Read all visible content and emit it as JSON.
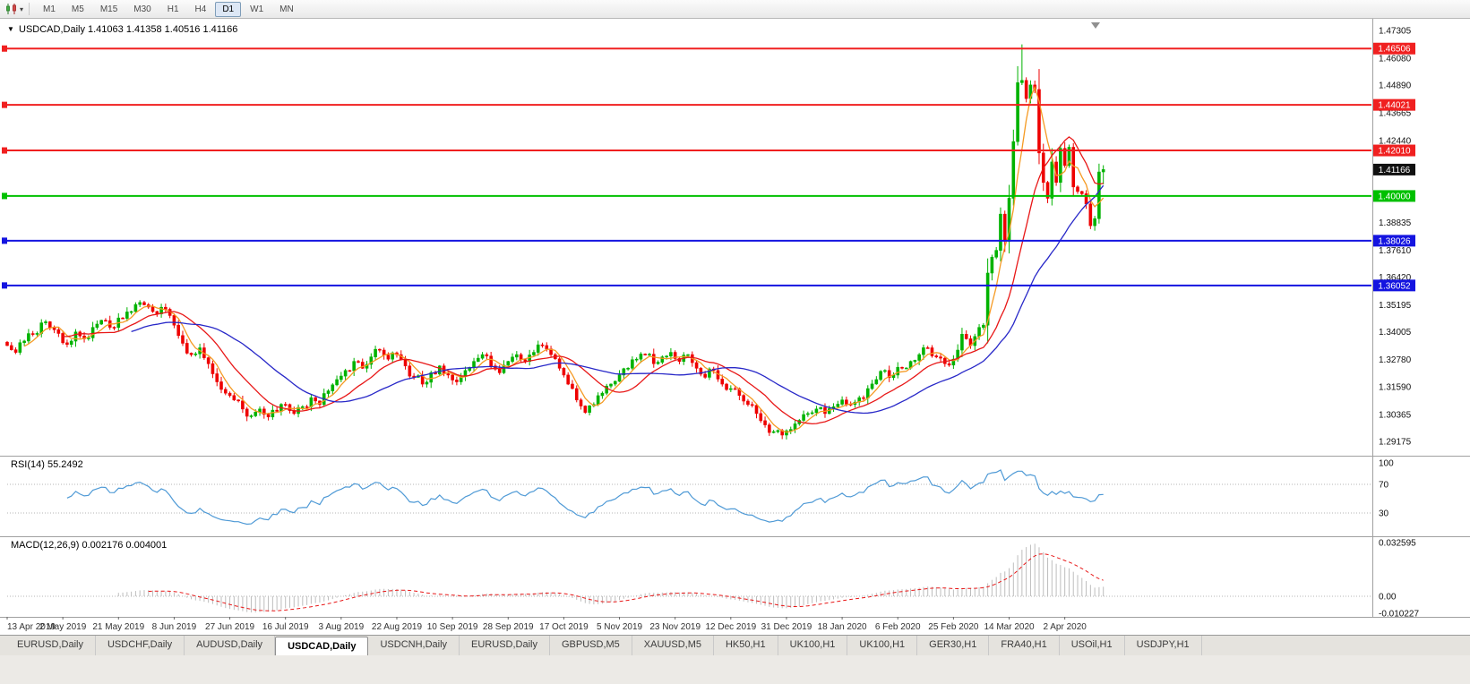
{
  "toolbar": {
    "dropdown_glyph": "▾",
    "timeframes": [
      {
        "label": "M1",
        "active": false
      },
      {
        "label": "M5",
        "active": false
      },
      {
        "label": "M15",
        "active": false
      },
      {
        "label": "M30",
        "active": false
      },
      {
        "label": "H1",
        "active": false
      },
      {
        "label": "H4",
        "active": false
      },
      {
        "label": "D1",
        "active": true
      },
      {
        "label": "W1",
        "active": false
      },
      {
        "label": "MN",
        "active": false
      }
    ]
  },
  "chart": {
    "collapse_icon": "▼",
    "symbol": "USDCAD",
    "period": "Daily",
    "title_line": "USDCAD,Daily  1.41063 1.41358 1.40516 1.41166",
    "ohlc": {
      "open": "1.41063",
      "high": "1.41358",
      "low": "1.40516",
      "close": "1.41166"
    }
  },
  "price_axis": {
    "ticks": [
      "1.47305",
      "1.46080",
      "1.44890",
      "1.43665",
      "1.42440",
      "1.38835",
      "1.37610",
      "1.36420",
      "1.35195",
      "1.34005",
      "1.32780",
      "1.31590",
      "1.30365",
      "1.29175"
    ],
    "tags": [
      {
        "label": "1.46506",
        "price": 1.46506,
        "color": "#f02020",
        "text_color": "#ffffff"
      },
      {
        "label": "1.44021",
        "price": 1.44021,
        "color": "#f02020",
        "text_color": "#ffffff"
      },
      {
        "label": "1.42010",
        "price": 1.4201,
        "color": "#f02020",
        "text_color": "#ffffff"
      },
      {
        "label": "1.41166",
        "price": 1.41166,
        "color": "#111111",
        "text_color": "#ffffff"
      },
      {
        "label": "1.40000",
        "price": 1.4,
        "color": "#00c000",
        "text_color": "#ffffff"
      },
      {
        "label": "1.38026",
        "price": 1.38026,
        "color": "#1414e0",
        "text_color": "#ffffff"
      },
      {
        "label": "1.36052",
        "price": 1.36052,
        "color": "#1414e0",
        "text_color": "#ffffff"
      }
    ]
  },
  "rsi": {
    "label_line": "RSI(14) 55.2492",
    "current": 55.2492,
    "period": 14,
    "color": "#4f9ad6",
    "axis": [
      {
        "label": "100",
        "value": 100
      },
      {
        "label": "70",
        "value": 70
      },
      {
        "label": "30",
        "value": 30
      }
    ],
    "dotted_levels": [
      70,
      30
    ]
  },
  "macd": {
    "label_line": "MACD(12,26,9) 0.002176 0.004001",
    "current_macd": 0.002176,
    "current_signal": 0.004001,
    "hist_color": "#bdbdbd",
    "signal_color": "#e81717",
    "axis": [
      {
        "label": "0.032595",
        "value": 0.032595
      },
      {
        "label": "0.00",
        "value": 0
      },
      {
        "label": "-0.010227",
        "value": -0.010227
      }
    ]
  },
  "tabs": [
    {
      "label": "EURUSD,Daily",
      "active": false
    },
    {
      "label": "USDCHF,Daily",
      "active": false
    },
    {
      "label": "AUDUSD,Daily",
      "active": false
    },
    {
      "label": "USDCAD,Daily",
      "active": true
    },
    {
      "label": "USDCNH,Daily",
      "active": false
    },
    {
      "label": "EURUSD,Daily",
      "active": false
    },
    {
      "label": "GBPUSD,M5",
      "active": false
    },
    {
      "label": "XAUUSD,M5",
      "active": false
    },
    {
      "label": "HK50,H1",
      "active": false
    },
    {
      "label": "UK100,H1",
      "active": false
    },
    {
      "label": "UK100,H1",
      "active": false
    },
    {
      "label": "GER30,H1",
      "active": false
    },
    {
      "label": "FRA40,H1",
      "active": false
    },
    {
      "label": "USOil,H1",
      "active": false
    },
    {
      "label": "USDJPY,H1",
      "active": false
    }
  ],
  "chart_data": {
    "type": "candlestick",
    "symbol": "USDCAD",
    "timeframe": "Daily",
    "title": "USDCAD,Daily",
    "visible_price_range": [
      1.2854,
      1.4774
    ],
    "candle_count": 257,
    "noise_amp": 0.0022,
    "candle_up_color": "#00b200",
    "candle_down_color": "#ee0000",
    "x_labels": [
      "13 Apr 2019",
      "2 May 2019",
      "21 May 2019",
      "8 Jun 2019",
      "27 Jun 2019",
      "16 Jul 2019",
      "3 Aug 2019",
      "22 Aug 2019",
      "10 Sep 2019",
      "28 Sep 2019",
      "17 Oct 2019",
      "5 Nov 2019",
      "23 Nov 2019",
      "12 Dec 2019",
      "31 Dec 2019",
      "18 Jan 2020",
      "6 Feb 2020",
      "25 Feb 2020",
      "14 Mar 2020",
      "2 Apr 2020"
    ],
    "label_candle_step": 13,
    "close_waypoints": [
      [
        0,
        1.334
      ],
      [
        2,
        1.331
      ],
      [
        4,
        1.336
      ],
      [
        6,
        1.339
      ],
      [
        9,
        1.3445
      ],
      [
        11,
        1.341
      ],
      [
        14,
        1.3345
      ],
      [
        16,
        1.34
      ],
      [
        18,
        1.337
      ],
      [
        20,
        1.342
      ],
      [
        23,
        1.345
      ],
      [
        25,
        1.342
      ],
      [
        27,
        1.346
      ],
      [
        29,
        1.349
      ],
      [
        31,
        1.353
      ],
      [
        33,
        1.351
      ],
      [
        35,
        1.348
      ],
      [
        37,
        1.35
      ],
      [
        39,
        1.343
      ],
      [
        41,
        1.335
      ],
      [
        43,
        1.33
      ],
      [
        45,
        1.333
      ],
      [
        47,
        1.326
      ],
      [
        49,
        1.318
      ],
      [
        51,
        1.313
      ],
      [
        53,
        1.31
      ],
      [
        55,
        1.306
      ],
      [
        57,
        1.303
      ],
      [
        59,
        1.306
      ],
      [
        61,
        1.3025
      ],
      [
        63,
        1.305
      ],
      [
        65,
        1.308
      ],
      [
        67,
        1.304
      ],
      [
        69,
        1.307
      ],
      [
        71,
        1.311
      ],
      [
        73,
        1.308
      ],
      [
        75,
        1.314
      ],
      [
        77,
        1.319
      ],
      [
        79,
        1.323
      ],
      [
        81,
        1.327
      ],
      [
        83,
        1.324
      ],
      [
        85,
        1.329
      ],
      [
        87,
        1.332
      ],
      [
        89,
        1.328
      ],
      [
        91,
        1.33
      ],
      [
        93,
        1.325
      ],
      [
        95,
        1.32
      ],
      [
        97,
        1.317
      ],
      [
        99,
        1.322
      ],
      [
        101,
        1.325
      ],
      [
        103,
        1.321
      ],
      [
        105,
        1.318
      ],
      [
        107,
        1.323
      ],
      [
        109,
        1.327
      ],
      [
        111,
        1.33
      ],
      [
        113,
        1.325
      ],
      [
        115,
        1.322
      ],
      [
        117,
        1.327
      ],
      [
        119,
        1.33
      ],
      [
        121,
        1.327
      ],
      [
        123,
        1.331
      ],
      [
        125,
        1.334
      ],
      [
        127,
        1.33
      ],
      [
        129,
        1.324
      ],
      [
        131,
        1.317
      ],
      [
        133,
        1.31
      ],
      [
        135,
        1.3045
      ],
      [
        137,
        1.308
      ],
      [
        139,
        1.313
      ],
      [
        141,
        1.317
      ],
      [
        143,
        1.321
      ],
      [
        145,
        1.324
      ],
      [
        147,
        1.328
      ],
      [
        149,
        1.33
      ],
      [
        151,
        1.326
      ],
      [
        153,
        1.329
      ],
      [
        155,
        1.331
      ],
      [
        157,
        1.327
      ],
      [
        159,
        1.33
      ],
      [
        161,
        1.324
      ],
      [
        163,
        1.32
      ],
      [
        165,
        1.323
      ],
      [
        167,
        1.317
      ],
      [
        169,
        1.315
      ],
      [
        171,
        1.312
      ],
      [
        173,
        1.308
      ],
      [
        175,
        1.304
      ],
      [
        177,
        1.299
      ],
      [
        179,
        1.296
      ],
      [
        181,
        1.2945
      ],
      [
        183,
        1.297
      ],
      [
        185,
        1.301
      ],
      [
        187,
        1.304
      ],
      [
        189,
        1.306
      ],
      [
        191,
        1.304
      ],
      [
        193,
        1.307
      ],
      [
        195,
        1.31
      ],
      [
        197,
        1.308
      ],
      [
        199,
        1.311
      ],
      [
        201,
        1.315
      ],
      [
        203,
        1.319
      ],
      [
        205,
        1.323
      ],
      [
        207,
        1.321
      ],
      [
        209,
        1.324
      ],
      [
        211,
        1.327
      ],
      [
        213,
        1.33
      ],
      [
        215,
        1.333
      ],
      [
        217,
        1.329
      ],
      [
        219,
        1.326
      ],
      [
        221,
        1.328
      ],
      [
        222,
        1.332
      ],
      [
        223,
        1.339
      ],
      [
        224,
        1.337
      ],
      [
        225,
        1.334
      ],
      [
        226,
        1.338
      ],
      [
        227,
        1.342
      ],
      [
        228,
        1.343
      ],
      [
        229,
        1.366
      ],
      [
        230,
        1.373
      ],
      [
        231,
        1.376
      ],
      [
        232,
        1.392
      ],
      [
        233,
        1.38
      ],
      [
        234,
        1.399
      ],
      [
        235,
        1.424
      ],
      [
        236,
        1.45
      ],
      [
        237,
        1.451
      ],
      [
        238,
        1.443
      ],
      [
        239,
        1.449
      ],
      [
        240,
        1.447
      ],
      [
        241,
        1.419
      ],
      [
        242,
        1.406
      ],
      [
        243,
        1.399
      ],
      [
        244,
        1.415
      ],
      [
        245,
        1.406
      ],
      [
        246,
        1.421
      ],
      [
        247,
        1.4135
      ],
      [
        248,
        1.4215
      ],
      [
        249,
        1.404
      ],
      [
        250,
        1.402
      ],
      [
        251,
        1.401
      ],
      [
        252,
        1.3965
      ],
      [
        253,
        1.3869
      ],
      [
        254,
        1.39
      ],
      [
        255,
        1.4106
      ],
      [
        256,
        1.41166
      ]
    ],
    "peak": {
      "index": 237,
      "high": 1.4669
    },
    "last_candle": {
      "open": 1.41063,
      "high": 1.41358,
      "low": 1.40516,
      "close": 1.41166
    },
    "moving_averages": [
      {
        "period": 5,
        "color": "#f59a23"
      },
      {
        "period": 14,
        "color": "#e81717"
      },
      {
        "period": 30,
        "color": "#2828c8"
      }
    ],
    "support_resistance": [
      {
        "price": 1.46506,
        "color": "#f02020"
      },
      {
        "price": 1.44021,
        "color": "#f02020"
      },
      {
        "price": 1.4201,
        "color": "#f02020"
      },
      {
        "price": 1.4,
        "color": "#00c000"
      },
      {
        "price": 1.38026,
        "color": "#1414e0"
      },
      {
        "price": 1.36052,
        "color": "#1414e0"
      }
    ],
    "rsi_current": 55.2492,
    "macd_current": [
      0.002176,
      0.004001
    ]
  }
}
